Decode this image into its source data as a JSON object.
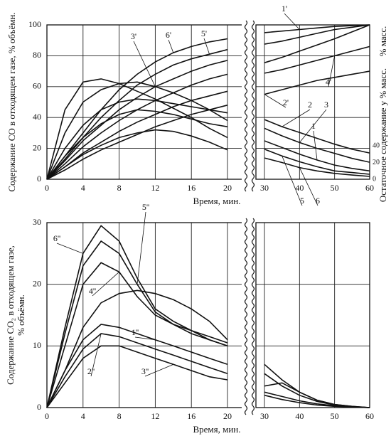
{
  "chart_data": [
    {
      "type": "line",
      "y_label": "Содержание CO в отходящем газе, % объёмн.",
      "y2_label": "Остаточное содержание у % масс.",
      "y2_unit": "% масс.",
      "x_label": "Время, мин.",
      "ylim": [
        0,
        100
      ],
      "yticks": [
        0,
        20,
        40,
        60,
        80,
        100
      ],
      "y2lim": [
        0,
        185
      ],
      "y2ticks": [
        0,
        20,
        40
      ],
      "x_segments": [
        {
          "xlim": [
            0,
            20
          ],
          "xticks": [
            0,
            4,
            8,
            12,
            16,
            20
          ]
        },
        {
          "xlim": [
            30,
            60
          ],
          "xticks": [
            30,
            40,
            50,
            60
          ]
        }
      ],
      "grid": true,
      "color": "#111111",
      "series": [
        {
          "name": "6'",
          "x": [
            0,
            2,
            4,
            6,
            8,
            10,
            12,
            14,
            16,
            18,
            20
          ],
          "values": [
            0,
            15,
            30,
            45,
            58,
            68,
            76,
            82,
            86,
            89,
            91
          ]
        },
        {
          "name": "5'",
          "x": [
            0,
            2,
            4,
            6,
            8,
            10,
            12,
            14,
            16,
            18,
            20
          ],
          "values": [
            0,
            13,
            27,
            40,
            51,
            61,
            68,
            74,
            78,
            81,
            84
          ]
        },
        {
          "name": "3'",
          "x": [
            0,
            2,
            4,
            6,
            8,
            10,
            12,
            14,
            16,
            18,
            20
          ],
          "values": [
            0,
            12,
            25,
            35,
            45,
            53,
            60,
            65,
            70,
            74,
            77
          ]
        },
        {
          "x": [
            0,
            2,
            4,
            6,
            8,
            10,
            12,
            14,
            16,
            18,
            20
          ],
          "values": [
            0,
            10,
            21,
            30,
            38,
            45,
            51,
            56,
            61,
            65,
            68
          ]
        },
        {
          "x": [
            0,
            2,
            4,
            6,
            8,
            10,
            12,
            14,
            16,
            18,
            20
          ],
          "values": [
            0,
            8,
            17,
            24,
            31,
            37,
            42,
            47,
            51,
            54,
            57
          ]
        },
        {
          "x": [
            0,
            2,
            4,
            6,
            8,
            10,
            12,
            14,
            16,
            18,
            20
          ],
          "values": [
            0,
            6,
            13,
            19,
            24,
            29,
            34,
            38,
            42,
            45,
            48
          ]
        },
        {
          "x": [
            0,
            2,
            4,
            6,
            8,
            10,
            12,
            14,
            16,
            18,
            20
          ],
          "values": [
            0,
            45,
            63,
            65,
            62,
            57,
            52,
            46,
            40,
            33,
            27
          ]
        },
        {
          "x": [
            0,
            2,
            4,
            6,
            8,
            10,
            12,
            14,
            16,
            18,
            20
          ],
          "values": [
            0,
            30,
            50,
            58,
            62,
            63,
            60,
            56,
            51,
            45,
            38
          ]
        },
        {
          "x": [
            0,
            2,
            4,
            6,
            8,
            10,
            12,
            14,
            16,
            18,
            20
          ],
          "values": [
            0,
            20,
            35,
            45,
            50,
            52,
            51,
            49,
            47,
            45,
            43
          ]
        },
        {
          "x": [
            0,
            2,
            4,
            6,
            8,
            10,
            12,
            14,
            16,
            18,
            20
          ],
          "values": [
            0,
            15,
            27,
            36,
            42,
            45,
            44,
            42,
            39,
            36,
            34
          ]
        },
        {
          "x": [
            0,
            2,
            4,
            6,
            8,
            10,
            12,
            14,
            16,
            18,
            20
          ],
          "values": [
            0,
            8,
            16,
            22,
            27,
            30,
            32,
            31,
            28,
            24,
            19
          ]
        },
        {
          "name": "1'",
          "x": [
            30,
            35,
            40,
            45,
            50,
            55,
            60
          ],
          "values": [
            95,
            96,
            97,
            98,
            99,
            99.5,
            100
          ]
        },
        {
          "x": [
            30,
            35,
            40,
            45,
            50,
            55,
            60
          ],
          "values": [
            87.5,
            89.5,
            92,
            94.5,
            97,
            98.5,
            100
          ]
        },
        {
          "x": [
            30,
            35,
            40,
            45,
            50,
            55,
            60
          ],
          "values": [
            75.5,
            79,
            83,
            87,
            91,
            95.5,
            100
          ]
        },
        {
          "name": "4'",
          "x": [
            30,
            35,
            40,
            45,
            50,
            55,
            60
          ],
          "values": [
            68.7,
            71,
            74,
            77,
            80,
            83,
            86
          ]
        },
        {
          "name": "2'",
          "x": [
            30,
            35,
            40,
            45,
            50,
            55,
            60
          ],
          "values": [
            55,
            58,
            61,
            64,
            66,
            68,
            70
          ]
        },
        {
          "name": "2",
          "axis": "y2",
          "x": [
            30,
            35,
            40,
            45,
            50,
            55,
            60
          ],
          "values": [
            71.5,
            63,
            56,
            49,
            42,
            36,
            31.5
          ]
        },
        {
          "name": "3",
          "axis": "y2",
          "x": [
            30,
            35,
            40,
            45,
            50,
            55,
            60
          ],
          "values": [
            61,
            52,
            44,
            37,
            31,
            25,
            20.4
          ]
        },
        {
          "name": "1",
          "axis": "y2",
          "x": [
            30,
            35,
            40,
            45,
            50,
            55,
            60
          ],
          "values": [
            46,
            38,
            30,
            23,
            17,
            13,
            10
          ]
        },
        {
          "name": "5",
          "axis": "y2",
          "x": [
            30,
            35,
            40,
            45,
            50,
            55,
            60
          ],
          "values": [
            36,
            28,
            21,
            15,
            10,
            8,
            6
          ]
        },
        {
          "name": "6",
          "axis": "y2",
          "x": [
            30,
            35,
            40,
            45,
            50,
            55,
            60
          ],
          "values": [
            25.5,
            20,
            14,
            10,
            7,
            5,
            3.4
          ]
        }
      ]
    },
    {
      "type": "line",
      "y_label": [
        "Содержание CO₂ в отходящем газе,",
        "% объёмн."
      ],
      "x_label": "Время, мин.",
      "ylim": [
        0,
        30
      ],
      "yticks": [
        0,
        10,
        20,
        30
      ],
      "x_segments": [
        {
          "xlim": [
            0,
            20
          ],
          "xticks": [
            0,
            4,
            8,
            12,
            16,
            20
          ]
        },
        {
          "xlim": [
            30,
            60
          ],
          "xticks": [
            30,
            40,
            50,
            60
          ]
        }
      ],
      "grid": true,
      "color": "#111111",
      "series": [
        {
          "name": "6''",
          "x": [
            0,
            2,
            4,
            6,
            8,
            10,
            12,
            14,
            16,
            18,
            20
          ],
          "values": [
            0,
            13,
            25,
            29.5,
            27,
            21,
            16,
            14,
            12.5,
            11,
            10
          ]
        },
        {
          "name": "5''",
          "x": [
            0,
            2,
            4,
            6,
            8,
            10,
            12,
            14,
            16,
            18,
            20
          ],
          "values": [
            0,
            12,
            23,
            27,
            25,
            20,
            15.5,
            13.5,
            12,
            11,
            10
          ]
        },
        {
          "name": "4''",
          "x": [
            0,
            2,
            4,
            6,
            8,
            10,
            12,
            14,
            16,
            18,
            20
          ],
          "values": [
            0,
            10,
            20,
            23.5,
            22,
            18,
            15,
            13.5,
            12.5,
            11.5,
            10.5
          ]
        },
        {
          "x": [
            0,
            2,
            4,
            6,
            8,
            10,
            12,
            14,
            16,
            18,
            20
          ],
          "values": [
            0,
            6,
            13,
            17,
            18.5,
            19,
            18.5,
            17.5,
            16,
            14,
            11
          ]
        },
        {
          "name": "1''",
          "x": [
            0,
            2,
            4,
            6,
            8,
            10,
            12,
            14,
            16,
            18,
            20
          ],
          "values": [
            0,
            6,
            11,
            13.5,
            13,
            12,
            11,
            10,
            9,
            8,
            7
          ]
        },
        {
          "name": "2''",
          "x": [
            0,
            2,
            4,
            6,
            8,
            10,
            12,
            14,
            16,
            18,
            20
          ],
          "values": [
            0,
            5,
            9.5,
            12,
            11.5,
            10.5,
            9.5,
            8.5,
            7.5,
            6.5,
            5.5
          ]
        },
        {
          "name": "3''",
          "x": [
            0,
            2,
            4,
            6,
            8,
            10,
            12,
            14,
            16,
            18,
            20
          ],
          "values": [
            0,
            4,
            8,
            10,
            10,
            9,
            8,
            7,
            6,
            5,
            4.5
          ]
        },
        {
          "x": [
            30,
            35,
            40,
            45,
            50,
            55,
            60
          ],
          "values": [
            7,
            4.5,
            2.5,
            1.2,
            0.5,
            0.2,
            0
          ]
        },
        {
          "x": [
            30,
            35,
            40,
            45,
            50,
            55,
            60
          ],
          "values": [
            5.5,
            3.5,
            2,
            1,
            0.4,
            0.1,
            0
          ]
        },
        {
          "x": [
            30,
            35,
            40,
            45,
            50,
            55,
            60
          ],
          "values": [
            3.5,
            4,
            2.5,
            1.2,
            0.5,
            0.2,
            0
          ]
        },
        {
          "x": [
            30,
            35,
            40,
            45,
            50,
            55,
            60
          ],
          "values": [
            2.5,
            1.8,
            1.1,
            0.6,
            0.3,
            0.1,
            0
          ]
        },
        {
          "x": [
            30,
            35,
            40,
            45,
            50,
            55,
            60
          ],
          "values": [
            2,
            1.3,
            0.8,
            0.4,
            0.2,
            0.1,
            0
          ]
        }
      ]
    }
  ]
}
